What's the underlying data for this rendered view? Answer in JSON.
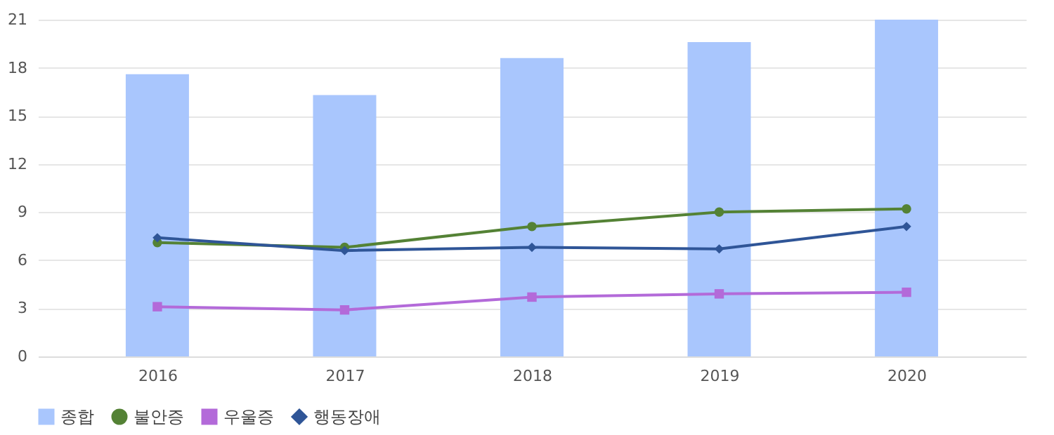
{
  "chart_data": {
    "type": "bar",
    "categories": [
      "2016",
      "2017",
      "2018",
      "2019",
      "2020"
    ],
    "series": [
      {
        "name": "종합",
        "color": "#a9c6fd",
        "values": [
          17.6,
          16.3,
          18.6,
          19.6,
          21.0
        ]
      },
      {
        "name": "불안증",
        "type": "line",
        "marker": "circle",
        "color": "#548235",
        "values": [
          7.1,
          6.8,
          8.1,
          9.0,
          9.2
        ]
      },
      {
        "name": "우울증",
        "type": "line",
        "marker": "square",
        "color": "#b36ad9",
        "values": [
          3.1,
          2.9,
          3.7,
          3.9,
          4.0
        ]
      },
      {
        "name": "행동장애",
        "type": "line",
        "marker": "diamond",
        "color": "#2f5597",
        "values": [
          7.4,
          6.6,
          6.8,
          6.7,
          8.1
        ]
      }
    ],
    "ylim": [
      0,
      21
    ],
    "yticks": [
      0,
      3,
      6,
      9,
      12,
      15,
      18,
      21
    ],
    "grid": "y",
    "legend": "bottom"
  }
}
